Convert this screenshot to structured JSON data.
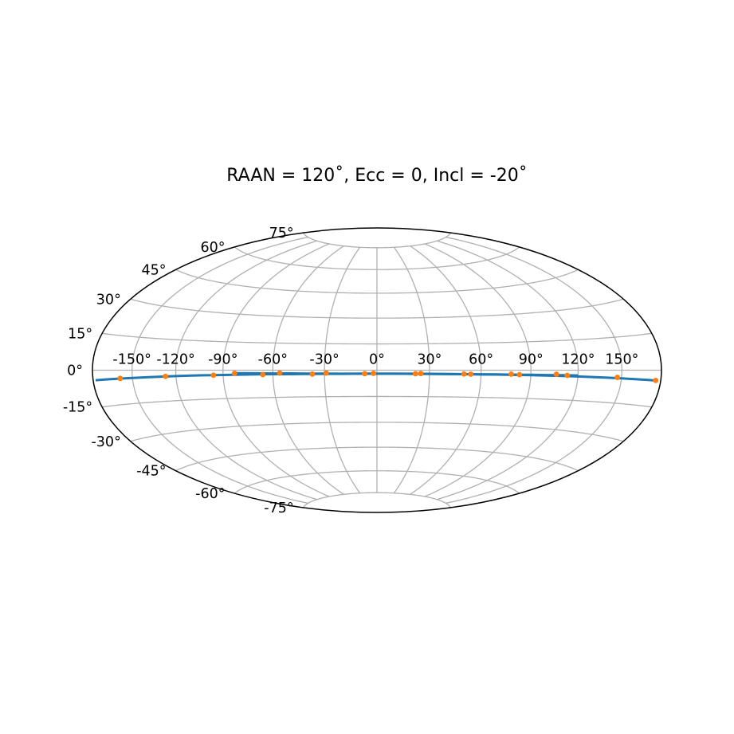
{
  "chart_data": {
    "type": "scatter",
    "title": "RAAN = 120˚, Ecc = 0, Incl = -20˚",
    "projection": "hammer",
    "grid": true,
    "xlim": [
      -180,
      180
    ],
    "ylim": [
      -90,
      90
    ],
    "lon_ticks": [
      {
        "value": -150,
        "label": "-150°"
      },
      {
        "value": -120,
        "label": "-120°"
      },
      {
        "value": -90,
        "label": "-90°"
      },
      {
        "value": -60,
        "label": "-60°"
      },
      {
        "value": -30,
        "label": "-30°"
      },
      {
        "value": 0,
        "label": "0°"
      },
      {
        "value": 30,
        "label": "30°"
      },
      {
        "value": 60,
        "label": "60°"
      },
      {
        "value": 90,
        "label": "90°"
      },
      {
        "value": 120,
        "label": "120°"
      },
      {
        "value": 150,
        "label": "150°"
      }
    ],
    "lat_ticks": [
      {
        "value": -75,
        "label": "-75°"
      },
      {
        "value": -60,
        "label": "-60°"
      },
      {
        "value": -45,
        "label": "-45°"
      },
      {
        "value": -30,
        "label": "-30°"
      },
      {
        "value": -15,
        "label": "-15°"
      },
      {
        "value": 0,
        "label": "0°"
      },
      {
        "value": 15,
        "label": "15°"
      },
      {
        "value": 30,
        "label": "30°"
      },
      {
        "value": 45,
        "label": "45°"
      },
      {
        "value": 60,
        "label": "60°"
      },
      {
        "value": 75,
        "label": "75°"
      }
    ],
    "series": [
      {
        "kind": "track",
        "color": "#1f77b4",
        "x": [
          -178,
          -170,
          -160,
          -150,
          -140,
          -130,
          -120,
          -110,
          -100,
          -90,
          -80,
          -70,
          -60,
          -50,
          -40,
          -30,
          -20,
          -10,
          0,
          10,
          20,
          30,
          40,
          50,
          60,
          70,
          80,
          90,
          100,
          110,
          120,
          130,
          140,
          150,
          160,
          170,
          178
        ],
        "y": [
          -4.1,
          -3.9,
          -3.7,
          -3.5,
          -3.3,
          -3.1,
          -2.9,
          -2.7,
          -2.6,
          -2.5,
          -2.4,
          -2.3,
          -2.2,
          -2.2,
          -2.1,
          -2.1,
          -2.1,
          -2.0,
          -2.0,
          -2.0,
          -2.0,
          -2.1,
          -2.1,
          -2.2,
          -2.3,
          -2.4,
          -2.5,
          -2.6,
          -2.8,
          -2.9,
          -3.1,
          -3.3,
          -3.5,
          -3.7,
          -3.9,
          -4.1,
          -4.3
        ]
      },
      {
        "kind": "track",
        "color": "#1f77b4",
        "x": [
          -82,
          -70,
          -60,
          -50,
          -40,
          -30,
          -20,
          -10,
          0,
          10,
          20,
          30,
          40,
          50,
          60,
          70,
          80,
          90,
          100,
          110,
          120
        ],
        "y": [
          -1.6,
          -1.7,
          -1.8,
          -1.8,
          -1.9,
          -1.9,
          -2.0,
          -2.0,
          -2.0,
          -2.0,
          -2.1,
          -2.1,
          -2.2,
          -2.2,
          -2.3,
          -2.3,
          -2.4,
          -2.4,
          -2.5,
          -2.5,
          -2.6
        ]
      },
      {
        "kind": "points",
        "color": "#ff7f0e",
        "x": [
          -159,
          -127,
          -96,
          -83,
          -66,
          -56,
          -37,
          -29,
          -7,
          -2,
          22,
          25,
          50,
          54,
          78,
          83,
          106,
          113,
          147,
          176
        ],
        "y": [
          -3.6,
          -3.0,
          -2.6,
          -1.7,
          -2.4,
          -1.6,
          -2.2,
          -1.6,
          -2.0,
          -1.8,
          -2.0,
          -1.9,
          -2.1,
          -2.2,
          -2.1,
          -2.4,
          -2.1,
          -2.6,
          -3.3,
          -4.2
        ]
      }
    ]
  }
}
